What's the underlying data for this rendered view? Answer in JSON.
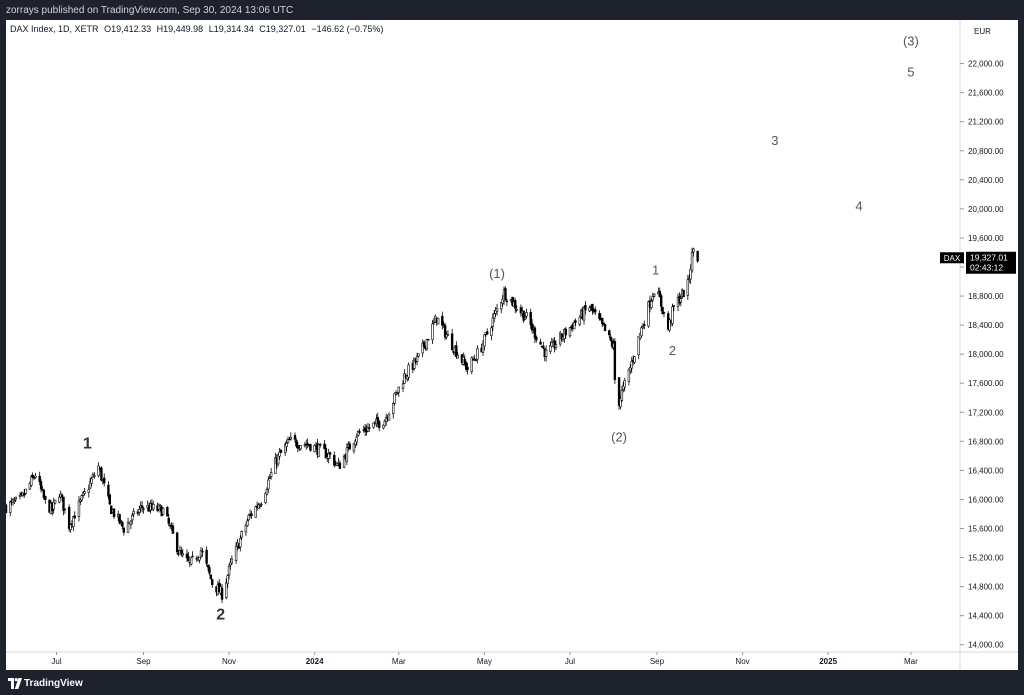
{
  "publisher_line": "zorrays published on TradingView.com, Sep 30, 2024 13:06 UTC",
  "footer_brand": "TradingView",
  "legend": {
    "symbol": "DAX Index, 1D, XETR",
    "open": "O19,412.33",
    "high": "H19,449.98",
    "low": "L19,314.34",
    "close": "C19,327.01",
    "change": "−146.62 (−0.75%)"
  },
  "price_scale": {
    "currency": "EUR"
  },
  "price_tag": {
    "symbol": "DAX",
    "price": "19,327.01",
    "countdown": "02:43:12",
    "value": 19327.01
  },
  "colors": {
    "candle": "#000000",
    "background": "#ffffff",
    "frame": "#1e222d",
    "tag": "#000000",
    "label": "#555555"
  },
  "chart_data": {
    "type": "candlestick",
    "title": "DAX Index, 1D, XETR",
    "ylim": [
      13900,
      22600
    ],
    "y_ticks": [
      14000,
      14400,
      14800,
      15200,
      15600,
      16000,
      16400,
      16800,
      17200,
      17600,
      18000,
      18400,
      18800,
      19200,
      19600,
      20000,
      20400,
      20800,
      21200,
      21600,
      22000
    ],
    "y_tick_labels": [
      "14,000.00",
      "14,400.00",
      "14,800.00",
      "15,200.00",
      "15,600.00",
      "16,000.00",
      "16,400.00",
      "16,800.00",
      "17,200.00",
      "17,600.00",
      "18,000.00",
      "18,400.00",
      "18,800.00",
      "19,200.00",
      "19,600.00",
      "20,000.00",
      "20,400.00",
      "20,800.00",
      "21,200.00",
      "21,600.00",
      "22,000.00"
    ],
    "x_range": [
      "2023-05-26",
      "2025-04-05"
    ],
    "x_ticks": [
      {
        "date": "2023-07-01",
        "label": "Jul",
        "bold": false
      },
      {
        "date": "2023-09-01",
        "label": "Sep",
        "bold": false
      },
      {
        "date": "2023-11-01",
        "label": "Nov",
        "bold": false
      },
      {
        "date": "2024-01-01",
        "label": "2024",
        "bold": true
      },
      {
        "date": "2024-03-01",
        "label": "Mar",
        "bold": false
      },
      {
        "date": "2024-05-01",
        "label": "May",
        "bold": false
      },
      {
        "date": "2024-07-01",
        "label": "Jul",
        "bold": false
      },
      {
        "date": "2024-09-01",
        "label": "Sep",
        "bold": false
      },
      {
        "date": "2024-11-01",
        "label": "Nov",
        "bold": false
      },
      {
        "date": "2025-01-01",
        "label": "2025",
        "bold": true
      },
      {
        "date": "2025-03-01",
        "label": "Mar",
        "bold": false
      }
    ],
    "price_path": [
      {
        "date": "2023-05-26",
        "close": 15900
      },
      {
        "date": "2023-06-06",
        "close": 16000
      },
      {
        "date": "2023-06-16",
        "close": 16350
      },
      {
        "date": "2023-06-23",
        "close": 15950
      },
      {
        "date": "2023-06-28",
        "close": 15850
      },
      {
        "date": "2023-07-03",
        "close": 16100
      },
      {
        "date": "2023-07-10",
        "close": 15650
      },
      {
        "date": "2023-07-31",
        "close": 16450
      },
      {
        "date": "2023-08-08",
        "close": 15900
      },
      {
        "date": "2023-08-18",
        "close": 15600
      },
      {
        "date": "2023-08-31",
        "close": 15900
      },
      {
        "date": "2023-09-15",
        "close": 15850
      },
      {
        "date": "2023-09-27",
        "close": 15250
      },
      {
        "date": "2023-10-04",
        "close": 15100
      },
      {
        "date": "2023-10-12",
        "close": 15300
      },
      {
        "date": "2023-10-20",
        "close": 14850
      },
      {
        "date": "2023-10-27",
        "close": 14700
      },
      {
        "date": "2023-11-03",
        "close": 15150
      },
      {
        "date": "2023-11-15",
        "close": 15750
      },
      {
        "date": "2023-11-24",
        "close": 16000
      },
      {
        "date": "2023-12-05",
        "close": 16550
      },
      {
        "date": "2023-12-14",
        "close": 16800
      },
      {
        "date": "2023-12-29",
        "close": 16750
      },
      {
        "date": "2024-01-12",
        "close": 16600
      },
      {
        "date": "2024-01-18",
        "close": 16450
      },
      {
        "date": "2024-01-31",
        "close": 16900
      },
      {
        "date": "2024-02-20",
        "close": 17100
      },
      {
        "date": "2024-03-05",
        "close": 17700
      },
      {
        "date": "2024-03-15",
        "close": 17950
      },
      {
        "date": "2024-03-28",
        "close": 18500
      },
      {
        "date": "2024-04-09",
        "close": 18100
      },
      {
        "date": "2024-04-19",
        "close": 17800
      },
      {
        "date": "2024-04-29",
        "close": 18100
      },
      {
        "date": "2024-05-15",
        "close": 18850
      },
      {
        "date": "2024-05-31",
        "close": 18500
      },
      {
        "date": "2024-06-14",
        "close": 18000
      },
      {
        "date": "2024-06-21",
        "close": 18150
      },
      {
        "date": "2024-07-05",
        "close": 18450
      },
      {
        "date": "2024-07-15",
        "close": 18650
      },
      {
        "date": "2024-07-25",
        "close": 18350
      },
      {
        "date": "2024-08-01",
        "close": 18100
      },
      {
        "date": "2024-08-02",
        "close": 17650
      },
      {
        "date": "2024-08-05",
        "close": 17350
      },
      {
        "date": "2024-08-12",
        "close": 17750
      },
      {
        "date": "2024-08-21",
        "close": 18350
      },
      {
        "date": "2024-08-30",
        "close": 18900
      },
      {
        "date": "2024-09-03",
        "close": 18750
      },
      {
        "date": "2024-09-09",
        "close": 18350
      },
      {
        "date": "2024-09-13",
        "close": 18650
      },
      {
        "date": "2024-09-20",
        "close": 18850
      },
      {
        "date": "2024-09-23",
        "close": 18950
      },
      {
        "date": "2024-09-26",
        "close": 19350
      },
      {
        "date": "2024-09-27",
        "close": 19450
      },
      {
        "date": "2024-09-30",
        "close": 19327
      }
    ],
    "annotations": [
      {
        "text": "1",
        "date": "2023-07-23",
        "y": 16700,
        "bold": true
      },
      {
        "text": "2",
        "date": "2023-10-26",
        "y": 14350,
        "bold": true
      },
      {
        "text": "(1)",
        "date": "2024-05-10",
        "y": 19050,
        "bold": false
      },
      {
        "text": "(2)",
        "date": "2024-08-05",
        "y": 16800,
        "bold": false
      },
      {
        "text": "1",
        "date": "2024-08-31",
        "y": 19100,
        "bold": false
      },
      {
        "text": "2",
        "date": "2024-09-12",
        "y": 17990,
        "bold": false
      },
      {
        "text": "3",
        "date": "2024-11-24",
        "y": 20880,
        "bold": false
      },
      {
        "text": "4",
        "date": "2025-01-23",
        "y": 19980,
        "bold": false
      },
      {
        "text": "5",
        "date": "2025-03-01",
        "y": 21820,
        "bold": false
      },
      {
        "text": "(3)",
        "date": "2025-03-01",
        "y": 22250,
        "bold": false
      }
    ]
  }
}
